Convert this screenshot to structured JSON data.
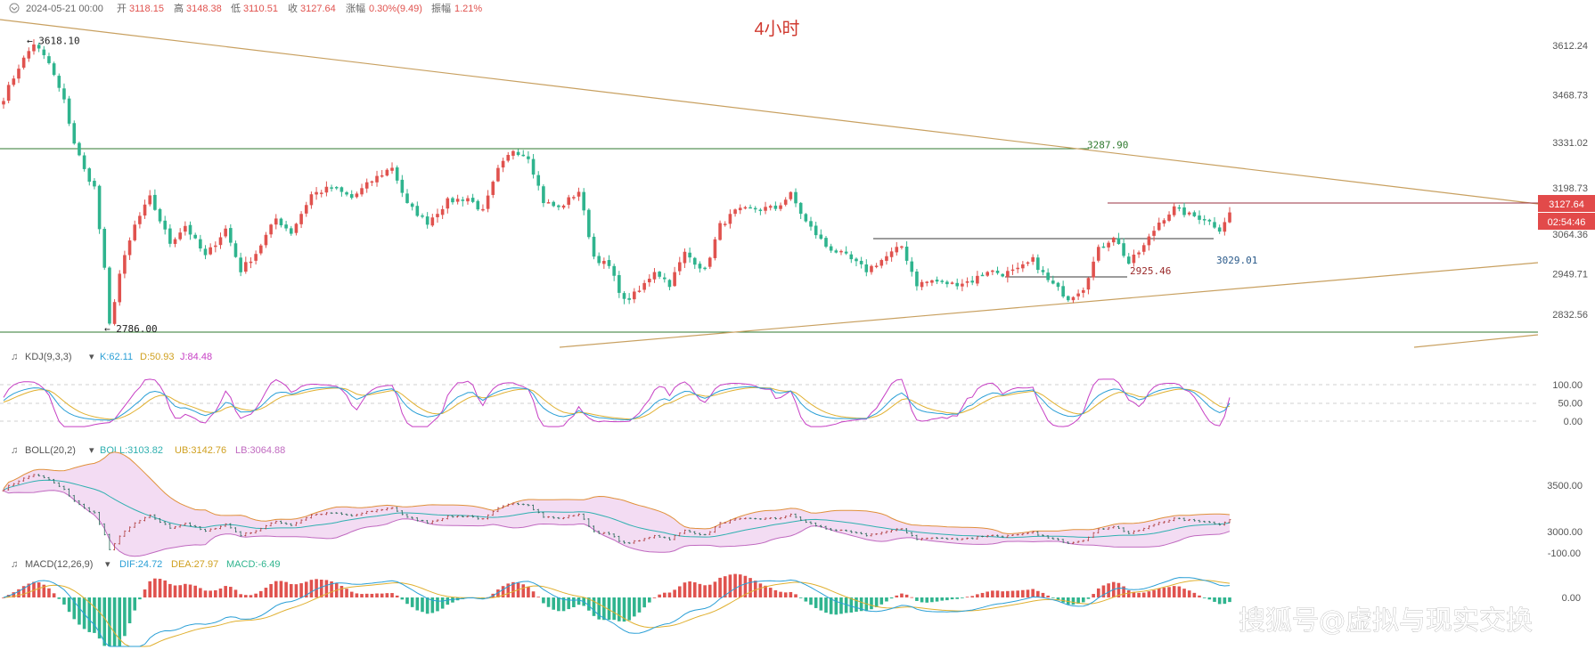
{
  "header": {
    "date": "2024-05-21 00:00",
    "open_label": "开",
    "open": "3118.15",
    "high_label": "高",
    "high": "3148.38",
    "low_label": "低",
    "low": "3110.51",
    "close_label": "收",
    "close": "3127.64",
    "change_label": "涨幅",
    "change": "0.30%(9.49)",
    "amplitude_label": "振幅",
    "amplitude": "1.21%"
  },
  "timeframe_label": "4小时",
  "watermark": "搜狐号@虚拟与现实交换",
  "colors": {
    "up": "#e0524e",
    "down": "#2fb48e",
    "k": "#2a9fd6",
    "d": "#e0b030",
    "j": "#c63fc4",
    "boll_mid": "#2fb0b0",
    "boll_upper": "#e0903a",
    "boll_lower": "#c06ac0",
    "boll_fill": "#f3dcf3",
    "macd_dif": "#2a9fd6",
    "macd_dea": "#e0b030",
    "trend": "#c8a060",
    "support": "#2f7a2f",
    "hline": "#3a3a3a",
    "price_tag": "#e24a4a"
  },
  "chart_data": [
    {
      "type": "candlestick",
      "name": "main",
      "ylim": [
        2786,
        3618.1
      ],
      "yticks": [
        "3612.24",
        "3468.73",
        "3331.02",
        "3198.73",
        "3064.36",
        "2949.71",
        "2832.56"
      ],
      "ytick_values": [
        3612.24,
        3468.73,
        3331.02,
        3198.73,
        3064.36,
        2949.71,
        2832.56
      ],
      "last_price": "3127.64",
      "countdown": "02:54:46",
      "annotations": [
        {
          "text": "← 3618.10",
          "value": 3618.1
        },
        {
          "text": "← 2786.00",
          "value": 2786.0
        },
        {
          "text": "3287.90",
          "value": 3287.9
        },
        {
          "text": "3029.01",
          "value": 3029.01
        },
        {
          "text": "2925.46",
          "value": 2925.46
        }
      ],
      "anchors": [
        [
          0,
          3460
        ],
        [
          3,
          3550
        ],
        [
          6,
          3618
        ],
        [
          9,
          3560
        ],
        [
          12,
          3450
        ],
        [
          14,
          3330
        ],
        [
          16,
          3250
        ],
        [
          18,
          3200
        ],
        [
          20,
          2960
        ],
        [
          21,
          2800
        ],
        [
          23,
          2950
        ],
        [
          26,
          3090
        ],
        [
          29,
          3170
        ],
        [
          33,
          3040
        ],
        [
          36,
          3090
        ],
        [
          40,
          3000
        ],
        [
          44,
          3080
        ],
        [
          47,
          2960
        ],
        [
          50,
          3010
        ],
        [
          54,
          3110
        ],
        [
          57,
          3070
        ],
        [
          61,
          3180
        ],
        [
          65,
          3200
        ],
        [
          69,
          3170
        ],
        [
          73,
          3220
        ],
        [
          77,
          3260
        ],
        [
          80,
          3150
        ],
        [
          84,
          3100
        ],
        [
          88,
          3160
        ],
        [
          92,
          3170
        ],
        [
          95,
          3130
        ],
        [
          98,
          3250
        ],
        [
          101,
          3310
        ],
        [
          104,
          3290
        ],
        [
          107,
          3160
        ],
        [
          110,
          3140
        ],
        [
          114,
          3190
        ],
        [
          117,
          3000
        ],
        [
          120,
          2970
        ],
        [
          123,
          2870
        ],
        [
          126,
          2900
        ],
        [
          129,
          2960
        ],
        [
          132,
          2920
        ],
        [
          135,
          3010
        ],
        [
          139,
          2960
        ],
        [
          142,
          3090
        ],
        [
          145,
          3130
        ],
        [
          149,
          3140
        ],
        [
          153,
          3140
        ],
        [
          156,
          3180
        ],
        [
          159,
          3100
        ],
        [
          163,
          3030
        ],
        [
          167,
          3000
        ],
        [
          171,
          2960
        ],
        [
          175,
          3000
        ],
        [
          178,
          3030
        ],
        [
          181,
          2920
        ],
        [
          184,
          2930
        ],
        [
          188,
          2920
        ],
        [
          192,
          2930
        ],
        [
          195,
          2960
        ],
        [
          198,
          2950
        ],
        [
          201,
          2960
        ],
        [
          204,
          2990
        ],
        [
          207,
          2930
        ],
        [
          211,
          2880
        ],
        [
          214,
          2910
        ],
        [
          217,
          3020
        ],
        [
          220,
          3060
        ],
        [
          223,
          2980
        ],
        [
          226,
          3030
        ],
        [
          229,
          3100
        ],
        [
          232,
          3140
        ],
        [
          235,
          3120
        ],
        [
          238,
          3110
        ],
        [
          241,
          3080
        ],
        [
          243,
          3128
        ]
      ]
    },
    {
      "type": "line",
      "name": "KDJ(9,3,3)",
      "series": [
        {
          "name": "K",
          "label": "K:62.11",
          "value": 62.11
        },
        {
          "name": "D",
          "label": "D:50.93",
          "value": 50.93
        },
        {
          "name": "J",
          "label": "J:84.48",
          "value": 84.48
        }
      ],
      "ylim": [
        -10,
        110
      ],
      "yticks": [
        "100.00",
        "50.00",
        "0.00"
      ],
      "ytick_values": [
        100,
        50,
        0
      ]
    },
    {
      "type": "line",
      "name": "BOLL(20,2)",
      "series": [
        {
          "name": "BOLL",
          "label": "BOLL:3103.82",
          "value": 3103.82
        },
        {
          "name": "UB",
          "label": "UB:3142.76",
          "value": 3142.76
        },
        {
          "name": "LB",
          "label": "LB:3064.88",
          "value": 3064.88
        }
      ],
      "yticks": [
        "3500.00",
        "3000.00"
      ],
      "ytick_values": [
        3500,
        3000
      ]
    },
    {
      "type": "bar",
      "name": "MACD(12,26,9)",
      "series": [
        {
          "name": "DIF",
          "label": "DIF:24.72",
          "value": 24.72
        },
        {
          "name": "DEA",
          "label": "DEA:27.97",
          "value": 27.97
        },
        {
          "name": "MACD",
          "label": "MACD:-6.49",
          "value": -6.49
        }
      ],
      "yticks": [
        "0.00",
        "-100.00"
      ],
      "ytick_values": [
        0,
        -100
      ]
    }
  ]
}
